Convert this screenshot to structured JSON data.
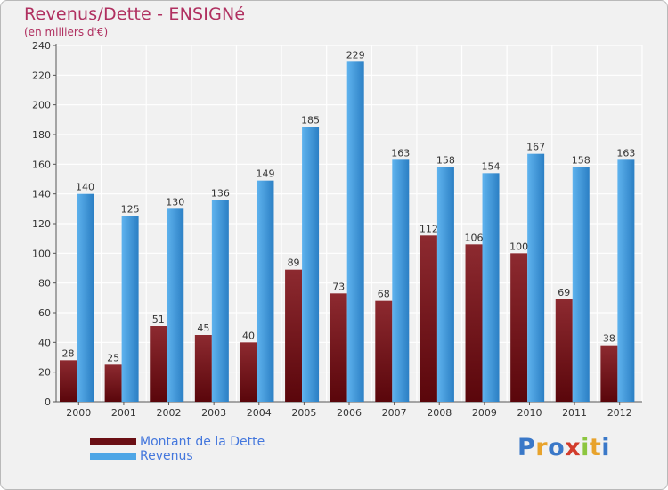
{
  "header": {
    "title": "Revenus/Dette - ENSIGNé",
    "subtitle": "(en milliers d'€)"
  },
  "chart_data": {
    "type": "bar",
    "title": "Revenus/Dette - ENSIGNé",
    "ylabel": "(en milliers d'€)",
    "xlabel": "",
    "ylim": [
      0,
      240
    ],
    "yticks": [
      0,
      20,
      40,
      60,
      80,
      100,
      120,
      140,
      160,
      180,
      200,
      220,
      240
    ],
    "grid": true,
    "categories": [
      "2000",
      "2001",
      "2002",
      "2003",
      "2004",
      "2005",
      "2006",
      "2007",
      "2008",
      "2009",
      "2010",
      "2011",
      "2012"
    ],
    "series": [
      {
        "name": "Montant de la Dette",
        "color": "#7a1a1f",
        "values": [
          28,
          25,
          51,
          45,
          40,
          89,
          73,
          68,
          112,
          106,
          100,
          69,
          38
        ]
      },
      {
        "name": "Revenus",
        "color": "#4ea6e6",
        "values": [
          140,
          125,
          130,
          136,
          149,
          185,
          229,
          163,
          158,
          154,
          167,
          158,
          163
        ]
      }
    ],
    "legend_position": "bottom-left"
  },
  "legend": {
    "items": [
      {
        "label": "Montant de la Dette",
        "color": "#6a0f14"
      },
      {
        "label": "Revenus",
        "color": "#4ea6e6"
      }
    ]
  },
  "logo": {
    "letters": [
      "P",
      "r",
      "o",
      "x",
      "i",
      "t",
      "i"
    ],
    "colors": [
      "#3a78c8",
      "#e8a32c",
      "#3a78c8",
      "#d23c2c",
      "#8cc63f",
      "#e8a32c",
      "#3a78c8"
    ]
  }
}
